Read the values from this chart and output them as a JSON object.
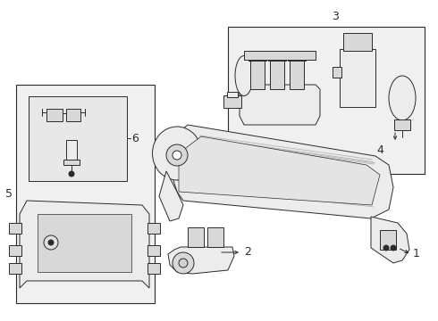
{
  "bg_color": "#ffffff",
  "line_color": "#2a2a2a",
  "fill_light": "#ececec",
  "fill_mid": "#d8d8d8",
  "fill_dark": "#c8c8c8",
  "fig_width": 4.9,
  "fig_height": 3.6,
  "dpi": 100
}
